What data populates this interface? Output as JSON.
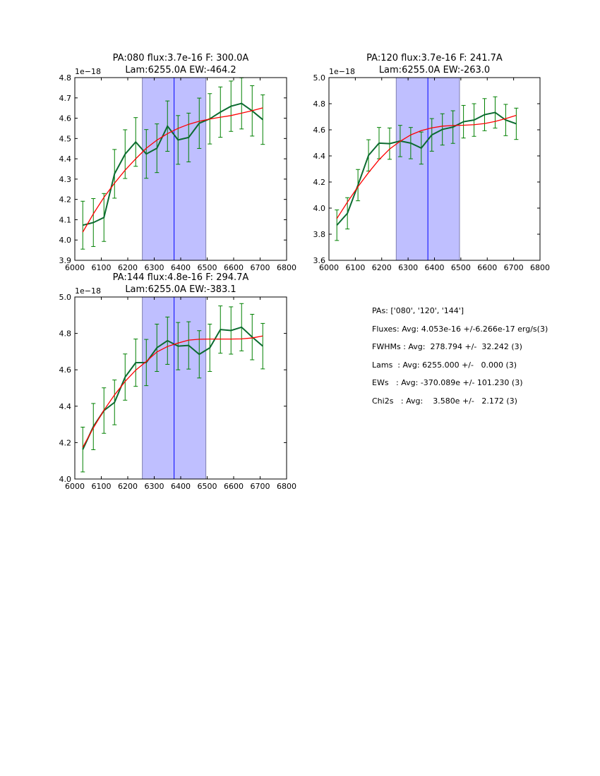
{
  "colors": {
    "band": "#bfbfff",
    "band_edge": "#8080b0",
    "center_line": "#0000ff",
    "data_line": "#0b6b30",
    "errorbar": "#008000",
    "fit": "#ff0000"
  },
  "chart_data": [
    {
      "type": "line",
      "title_line1": "PA:080 flux:3.7e-16 F: 300.0A",
      "title_line2": "Lam:6255.0A EW:-464.2",
      "offset_label": "1e−18",
      "xlim": [
        6000,
        6800
      ],
      "ylim": [
        3.9,
        4.8
      ],
      "xticks": [
        "6000",
        "6100",
        "6200",
        "6300",
        "6400",
        "6500",
        "6600",
        "6700",
        "6800"
      ],
      "yticks": [
        "3.9",
        "4.0",
        "4.1",
        "4.2",
        "4.3",
        "4.4",
        "4.5",
        "4.6",
        "4.7",
        "4.8"
      ],
      "band": [
        6255,
        6495
      ],
      "center": 6375,
      "x": [
        6030,
        6070,
        6110,
        6150,
        6190,
        6230,
        6270,
        6310,
        6350,
        6390,
        6430,
        6470,
        6510,
        6550,
        6590,
        6630,
        6670,
        6710
      ],
      "y": [
        4.073,
        4.086,
        4.111,
        4.326,
        4.423,
        4.483,
        4.424,
        4.452,
        4.561,
        4.493,
        4.505,
        4.575,
        4.597,
        4.63,
        4.659,
        4.673,
        4.636,
        4.593
      ],
      "yerr": [
        0.118,
        0.118,
        0.118,
        0.12,
        0.12,
        0.12,
        0.12,
        0.12,
        0.124,
        0.12,
        0.12,
        0.124,
        0.124,
        0.124,
        0.124,
        0.126,
        0.124,
        0.122
      ],
      "fit": [
        4.039,
        4.129,
        4.21,
        4.28,
        4.344,
        4.4,
        4.452,
        4.492,
        4.524,
        4.55,
        4.57,
        4.585,
        4.596,
        4.605,
        4.613,
        4.625,
        4.637,
        4.651
      ]
    },
    {
      "type": "line",
      "title_line1": "PA:120 flux:3.7e-16 F: 241.7A",
      "title_line2": "Lam:6255.0A EW:-263.0",
      "offset_label": "1e−18",
      "xlim": [
        6000,
        6800
      ],
      "ylim": [
        3.6,
        5.0
      ],
      "xticks": [
        "6000",
        "6100",
        "6200",
        "6300",
        "6400",
        "6500",
        "6600",
        "6700",
        "6800"
      ],
      "yticks": [
        "3.6",
        "3.8",
        "4.0",
        "4.2",
        "4.4",
        "4.6",
        "4.8",
        "5.0"
      ],
      "band": [
        6255,
        6495
      ],
      "center": 6375,
      "x": [
        6030,
        6070,
        6110,
        6150,
        6190,
        6230,
        6270,
        6310,
        6350,
        6390,
        6430,
        6470,
        6510,
        6550,
        6590,
        6630,
        6670,
        6710
      ],
      "y": [
        3.869,
        3.96,
        4.176,
        4.404,
        4.498,
        4.494,
        4.514,
        4.498,
        4.46,
        4.561,
        4.603,
        4.621,
        4.662,
        4.675,
        4.716,
        4.733,
        4.675,
        4.646
      ],
      "yerr": [
        0.117,
        0.12,
        0.12,
        0.12,
        0.12,
        0.12,
        0.12,
        0.12,
        0.123,
        0.125,
        0.12,
        0.125,
        0.125,
        0.125,
        0.123,
        0.12,
        0.12,
        0.12
      ],
      "fit": [
        3.92,
        4.046,
        4.164,
        4.272,
        4.371,
        4.453,
        4.512,
        4.561,
        4.594,
        4.615,
        4.628,
        4.633,
        4.635,
        4.639,
        4.648,
        4.664,
        4.686,
        4.711
      ]
    },
    {
      "type": "line",
      "title_line1": "PA:144 flux:4.8e-16 F: 294.7A",
      "title_line2": "Lam:6255.0A EW:-383.1",
      "offset_label": "1e−18",
      "xlim": [
        6000,
        6800
      ],
      "ylim": [
        4.0,
        5.0
      ],
      "xticks": [
        "6000",
        "6100",
        "6200",
        "6300",
        "6400",
        "6500",
        "6600",
        "6700",
        "6800"
      ],
      "yticks": [
        "4.0",
        "4.2",
        "4.4",
        "4.6",
        "4.8",
        "5.0"
      ],
      "band": [
        6255,
        6495
      ],
      "center": 6375,
      "x": [
        6030,
        6070,
        6110,
        6150,
        6190,
        6230,
        6270,
        6310,
        6350,
        6390,
        6430,
        6470,
        6510,
        6550,
        6590,
        6630,
        6670,
        6710
      ],
      "y": [
        4.162,
        4.288,
        4.376,
        4.421,
        4.56,
        4.639,
        4.64,
        4.721,
        4.76,
        4.73,
        4.734,
        4.685,
        4.721,
        4.821,
        4.816,
        4.834,
        4.78,
        4.73
      ],
      "yerr": [
        0.123,
        0.127,
        0.125,
        0.123,
        0.127,
        0.13,
        0.127,
        0.13,
        0.13,
        0.13,
        0.13,
        0.13,
        0.13,
        0.13,
        0.13,
        0.13,
        0.125,
        0.125
      ],
      "fit": [
        4.174,
        4.281,
        4.378,
        4.462,
        4.536,
        4.598,
        4.646,
        4.698,
        4.728,
        4.747,
        4.763,
        4.768,
        4.769,
        4.769,
        4.769,
        4.77,
        4.775,
        4.786
      ]
    }
  ],
  "summary": {
    "pas": "PAs: ['080', '120', '144']",
    "fluxes": "Fluxes: Avg: 4.053e-16 +/-6.266e-17 erg/s(3)",
    "fwhms": "FWHMs : Avg:  278.794 +/-  32.242 (3)",
    "lams": "Lams  : Avg: 6255.000 +/-   0.000 (3)",
    "ews": "EWs   : Avg: -370.089e +/- 101.230 (3)",
    "chi2s": "Chi2s   : Avg:    3.580e +/-   2.172 (3)"
  }
}
